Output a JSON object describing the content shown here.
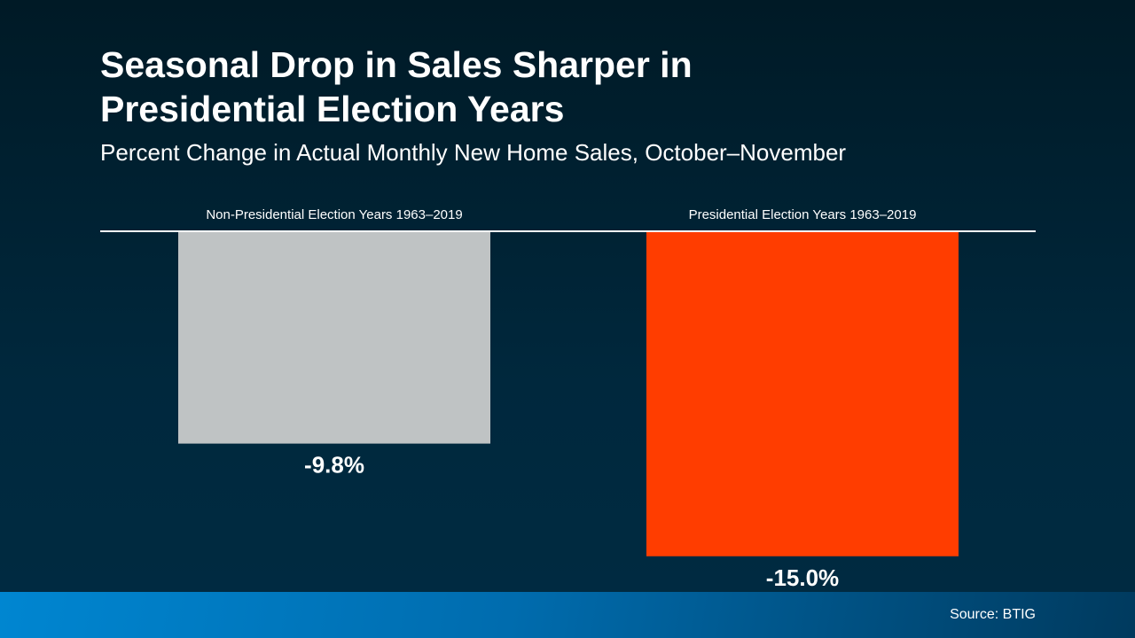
{
  "title_lines": [
    "Seasonal Drop in Sales Sharper in",
    "Presidential Election Years"
  ],
  "subtitle": "Percent Change in Actual Monthly New Home Sales, October–November",
  "source": "Source: BTIG",
  "chart_data": {
    "type": "bar",
    "title": "Seasonal Drop in Sales Sharper in Presidential Election Years",
    "subtitle": "Percent Change in Actual Monthly New Home Sales, October–November",
    "categories": [
      "Non-Presidential Election Years 1963–2019",
      "Presidential Election Years 1963–2019"
    ],
    "values": [
      -9.8,
      -15.0
    ],
    "labels": [
      "-9.8%",
      "-15.0%"
    ],
    "colors": [
      "#bfc3c4",
      "#ff3d00"
    ],
    "ylim": [
      -15.5,
      0
    ],
    "grid": false,
    "category_axis_position": "top"
  }
}
